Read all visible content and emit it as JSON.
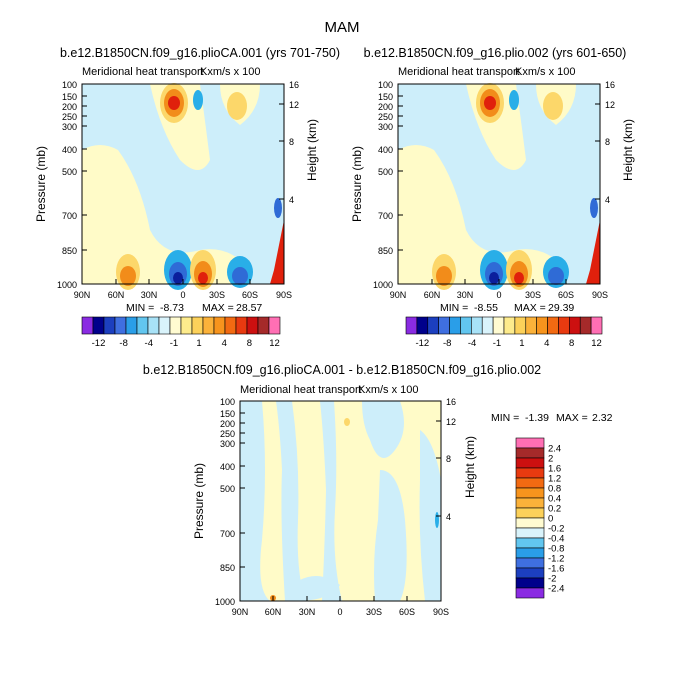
{
  "title": "MAM",
  "colors": {
    "bg": "#ffffff",
    "axis": "#000000",
    "neg_deep": "#0b1f9c",
    "neg_mid": "#2f6bd6",
    "neg_light": "#29aee8",
    "neg_pale": "#cdeefa",
    "pos_pale": "#fffbc8",
    "pos_light": "#fcd76a",
    "pos_mid": "#f28c1a",
    "pos_deep": "#e0200c",
    "pos_extreme": "#ff66b3"
  },
  "chart_data": [
    {
      "type": "heatmap",
      "title": "b.e12.B1850CN.f09_g16.plioCA.001 (yrs 701-750)",
      "subtitle": "Meridional heat transport",
      "units_label": "Kxm/s x 100",
      "ylabel": "Pressure (mb)",
      "y2label": "Height (km)",
      "x_ticks": [
        "90N",
        "60N",
        "30N",
        "0",
        "30S",
        "60S",
        "90S"
      ],
      "y_ticks": [
        100,
        150,
        200,
        250,
        300,
        400,
        500,
        700,
        850,
        1000
      ],
      "y2_ticks": [
        16,
        12,
        8,
        4
      ],
      "xlim": [
        90,
        -90
      ],
      "ylim": [
        1000,
        100
      ],
      "y_scale": "log",
      "stats_text": {
        "min_label": "MIN =",
        "min": "-8.73",
        "max_label": "MAX =",
        "max": "28.57"
      },
      "colorbar_labels": [
        "-12",
        "-8",
        "-4",
        "-1",
        "1",
        "4",
        "8",
        "12"
      ],
      "colorbar_colors": [
        "#8a2be2",
        "#00008b",
        "#1c3fbf",
        "#3f6fe0",
        "#2a9ee8",
        "#62c6ef",
        "#a8e2f7",
        "#d9f3fb",
        "#fffbd1",
        "#fdeb8c",
        "#fcd15a",
        "#fbb23a",
        "#f7941d",
        "#f26a12",
        "#e83a10",
        "#cc1010",
        "#a52a2a",
        "#ff6fb4"
      ],
      "colorbar_orientation": "horizontal"
    },
    {
      "type": "heatmap",
      "title": "b.e12.B1850CN.f09_g16.plio.002 (yrs 601-650)",
      "subtitle": "Meridional heat transport",
      "units_label": "Kxm/s x 100",
      "ylabel": "Pressure (mb)",
      "y2label": "Height (km)",
      "x_ticks": [
        "90N",
        "60N",
        "30N",
        "0",
        "30S",
        "60S",
        "90S"
      ],
      "y_ticks": [
        100,
        150,
        200,
        250,
        300,
        400,
        500,
        700,
        850,
        1000
      ],
      "y2_ticks": [
        16,
        12,
        8,
        4
      ],
      "xlim": [
        90,
        -90
      ],
      "ylim": [
        1000,
        100
      ],
      "y_scale": "log",
      "stats_text": {
        "min_label": "MIN =",
        "min": "-8.55",
        "max_label": "MAX =",
        "max": "29.39"
      },
      "colorbar_labels": [
        "-12",
        "-8",
        "-4",
        "-1",
        "1",
        "4",
        "8",
        "12"
      ],
      "colorbar_colors": [
        "#8a2be2",
        "#00008b",
        "#1c3fbf",
        "#3f6fe0",
        "#2a9ee8",
        "#62c6ef",
        "#a8e2f7",
        "#d9f3fb",
        "#fffbd1",
        "#fdeb8c",
        "#fcd15a",
        "#fbb23a",
        "#f7941d",
        "#f26a12",
        "#e83a10",
        "#cc1010",
        "#a52a2a",
        "#ff6fb4"
      ],
      "colorbar_orientation": "horizontal"
    },
    {
      "type": "heatmap",
      "title": "b.e12.B1850CN.f09_g16.plioCA.001 - b.e12.B1850CN.f09_g16.plio.002",
      "subtitle": "Meridional heat transport",
      "units_label": "Kxm/s x 100",
      "ylabel": "Pressure (mb)",
      "y2label": "Height (km)",
      "x_ticks": [
        "90N",
        "60N",
        "30N",
        "0",
        "30S",
        "60S",
        "90S"
      ],
      "y_ticks": [
        100,
        150,
        200,
        250,
        300,
        400,
        500,
        700,
        850,
        1000
      ],
      "y2_ticks": [
        16,
        12,
        8,
        4
      ],
      "xlim": [
        90,
        -90
      ],
      "ylim": [
        1000,
        100
      ],
      "y_scale": "log",
      "stats_text": {
        "min_label": "MIN =",
        "min": "-1.39",
        "max_label": "MAX =",
        "max": "2.32"
      },
      "colorbar_labels": [
        "2.4",
        "2",
        "1.6",
        "1.2",
        "0.8",
        "0.4",
        "0.2",
        "0",
        "-0.2",
        "-0.4",
        "-0.8",
        "-1.2",
        "-1.6",
        "-2",
        "-2.4"
      ],
      "colorbar_colors": [
        "#ff6fb4",
        "#a52a2a",
        "#cc1010",
        "#e83a10",
        "#f26a12",
        "#f7941d",
        "#fbb23a",
        "#fcd15a",
        "#fffbd1",
        "#d9f3fb",
        "#62c6ef",
        "#2a9ee8",
        "#3f6fe0",
        "#1c3fbf",
        "#00008b",
        "#8a2be2"
      ],
      "colorbar_orientation": "vertical"
    }
  ]
}
